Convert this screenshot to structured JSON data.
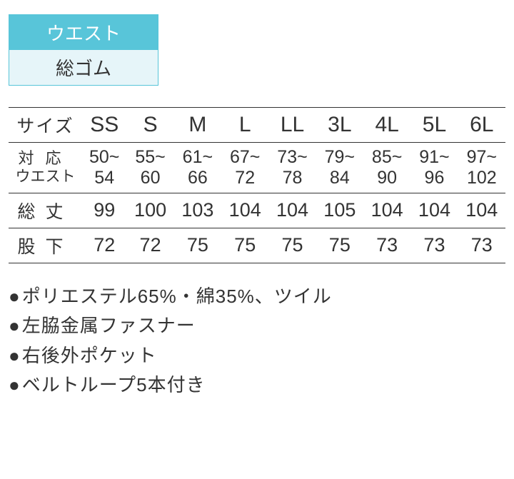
{
  "badge": {
    "header_label": "ウエスト",
    "body_label": "総ゴム",
    "header_bg": "#58c5d9",
    "header_color": "#ffffff",
    "body_bg": "#e6f5f9",
    "body_color": "#333333",
    "border_color": "#58c5d9"
  },
  "table": {
    "columns": [
      "サイズ",
      "SS",
      "S",
      "M",
      "L",
      "LL",
      "3L",
      "4L",
      "5L",
      "6L"
    ],
    "rows": [
      {
        "label_top": "対応",
        "label_bottom": "ウエスト",
        "type": "range",
        "values": [
          {
            "top": "50~",
            "bot": "54"
          },
          {
            "top": "55~",
            "bot": "60"
          },
          {
            "top": "61~",
            "bot": "66"
          },
          {
            "top": "67~",
            "bot": "72"
          },
          {
            "top": "73~",
            "bot": "78"
          },
          {
            "top": "79~",
            "bot": "84"
          },
          {
            "top": "85~",
            "bot": "90"
          },
          {
            "top": "91~",
            "bot": "96"
          },
          {
            "top": "97~",
            "bot": "102"
          }
        ]
      },
      {
        "label": "総丈",
        "type": "single",
        "values": [
          "99",
          "100",
          "103",
          "104",
          "104",
          "105",
          "104",
          "104",
          "104"
        ]
      },
      {
        "label": "股下",
        "type": "single",
        "values": [
          "72",
          "72",
          "75",
          "75",
          "75",
          "75",
          "73",
          "73",
          "73"
        ]
      }
    ],
    "border_color": "#333333",
    "text_color": "#333333"
  },
  "notes": {
    "items": [
      "ポリエステル65%・綿35%、ツイル",
      "左脇金属ファスナー",
      "右後外ポケット",
      "ベルトループ5本付き"
    ],
    "text_color": "#333333"
  }
}
